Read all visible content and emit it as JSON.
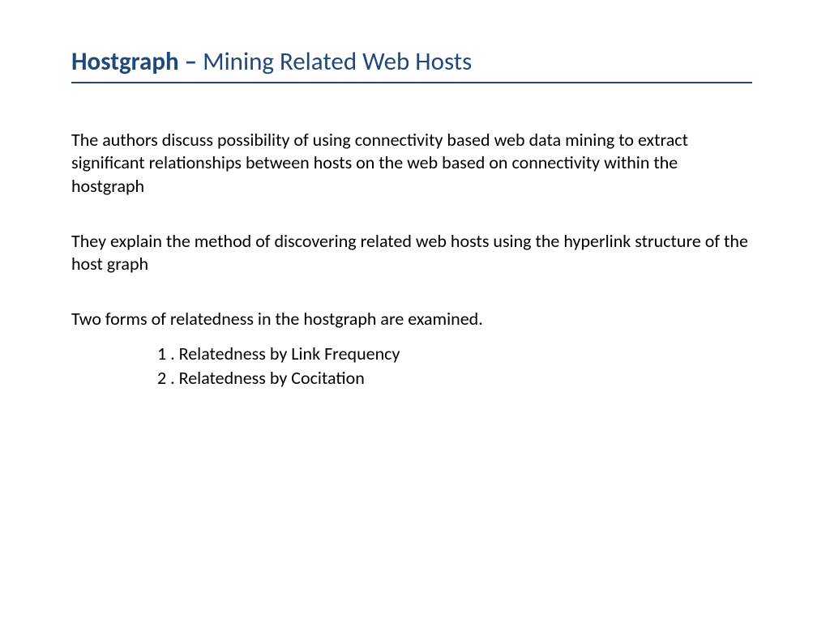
{
  "colors": {
    "title": "#1f497d",
    "rule": "#1f497d",
    "body": "#000000",
    "background": "#ffffff"
  },
  "typography": {
    "title_fontsize": 31,
    "body_fontsize": 22,
    "font_family": "Calibri"
  },
  "title": {
    "bold": "Hostgraph – ",
    "light": "Mining Related Web Hosts"
  },
  "paragraphs": {
    "p1": "The authors discuss possibility of using connectivity based web data mining to extract significant relationships between hosts on the web based on connectivity within the hostgraph",
    "p2": "They explain the method of discovering related web hosts using the hyperlink structure of the host graph",
    "p3": "Two forms of relatedness in the hostgraph are examined."
  },
  "list": {
    "item1": "1 . Relatedness by Link Frequency",
    "item2": "2 . Relatedness by Cocitation"
  }
}
